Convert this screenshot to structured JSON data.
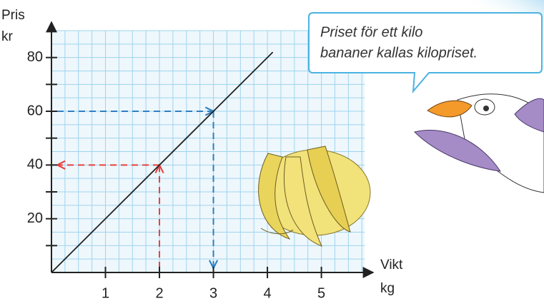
{
  "chart_data": {
    "type": "line",
    "y_label": [
      "Pris",
      "kr"
    ],
    "x_label": [
      "Vikt",
      "kg"
    ],
    "x": [
      0,
      4.1
    ],
    "values": [
      0,
      82
    ],
    "color": "#222222",
    "xlim": [
      0,
      5.8
    ],
    "ylim": [
      0,
      90
    ],
    "xticks": [
      1,
      2,
      3,
      4,
      5
    ],
    "yticks": [
      20,
      40,
      60,
      80
    ],
    "yticks_minor": [
      10,
      30,
      50,
      70
    ],
    "grid": true,
    "guides": [
      {
        "x": 3,
        "y": 60,
        "color": "#2f7fc1"
      },
      {
        "x": 2,
        "y": 40,
        "color": "#e8413c"
      }
    ],
    "annotation": [
      "Priset för ett kilo",
      "bananer kallas kilopriset."
    ]
  }
}
